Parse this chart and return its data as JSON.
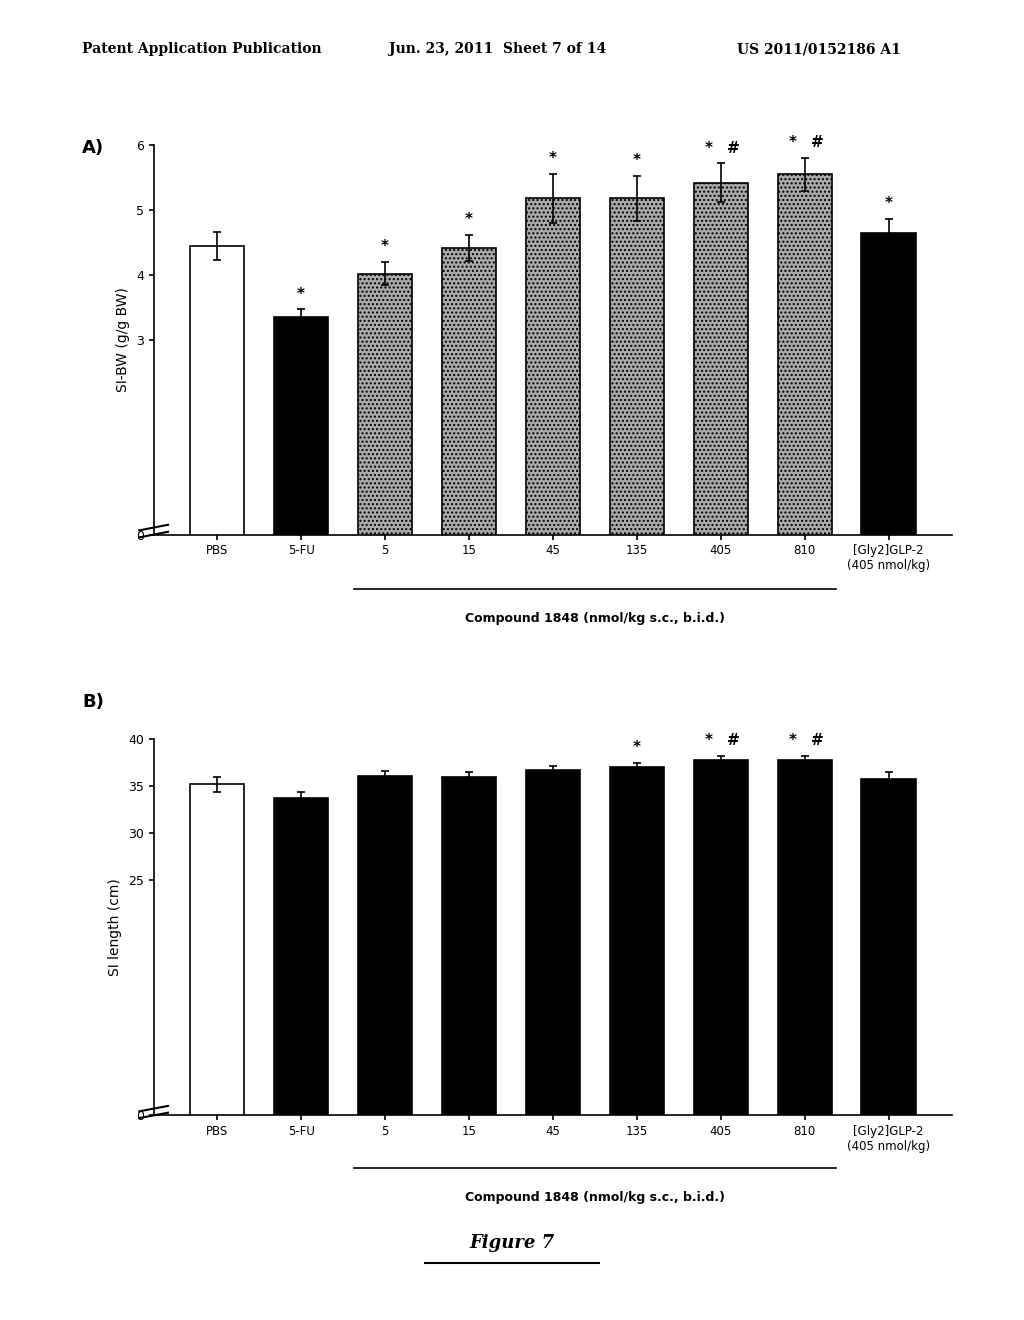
{
  "header_left": "Patent Application Publication",
  "header_mid": "Jun. 23, 2011  Sheet 7 of 14",
  "header_right": "US 2011/0152186 A1",
  "panel_A": {
    "label": "A)",
    "ylabel": "SI-BW (g/g BW)",
    "ylim": [
      0,
      6
    ],
    "yticks": [
      0,
      3,
      4,
      5,
      6
    ],
    "categories": [
      "PBS",
      "5-FU",
      "5",
      "15",
      "45",
      "135",
      "405",
      "810",
      "[Gly2]GLP-2\n(405 nmol/kg)"
    ],
    "values": [
      4.45,
      3.35,
      4.02,
      4.42,
      5.18,
      5.18,
      5.42,
      5.55,
      4.65
    ],
    "errors": [
      0.22,
      0.12,
      0.18,
      0.2,
      0.38,
      0.35,
      0.3,
      0.25,
      0.22
    ],
    "bar_styles": [
      "white",
      "black",
      "stipple",
      "stipple",
      "stipple",
      "stipple",
      "stipple",
      "stipple",
      "black"
    ],
    "annotations": [
      "",
      "*",
      "*",
      "*",
      "*\n*",
      "*\n*",
      "* #\n*",
      "* #\n*",
      "*"
    ],
    "ann_simple": [
      "",
      "*",
      "*",
      "*",
      "*",
      "*",
      "*#",
      "*#",
      "*"
    ],
    "xlabel": "Compound 1848 (nmol/kg s.c., b.i.d.)",
    "xlabel_span": [
      2,
      7
    ]
  },
  "panel_B": {
    "label": "B)",
    "ylabel": "SI length (cm)",
    "ylim": [
      0,
      40
    ],
    "yticks": [
      0,
      25,
      30,
      35,
      40
    ],
    "categories": [
      "PBS",
      "5-FU",
      "5",
      "15",
      "45",
      "135",
      "405",
      "810",
      "[Gly2]GLP-2\n(405 nmol/kg)"
    ],
    "values": [
      35.2,
      33.8,
      36.1,
      36.0,
      36.7,
      37.0,
      37.8,
      37.8,
      35.8
    ],
    "errors": [
      0.8,
      0.6,
      0.5,
      0.5,
      0.5,
      0.5,
      0.45,
      0.45,
      0.7
    ],
    "bar_styles": [
      "white",
      "black",
      "black",
      "black",
      "black",
      "black",
      "black",
      "black",
      "black"
    ],
    "ann_simple": [
      "",
      "",
      "",
      "",
      "",
      "*",
      "*#",
      "*#",
      ""
    ],
    "xlabel": "Compound 1848 (nmol/kg s.c., b.i.d.)",
    "xlabel_span": [
      2,
      7
    ]
  },
  "figure_label": "Figure 7",
  "background_color": "#ffffff"
}
